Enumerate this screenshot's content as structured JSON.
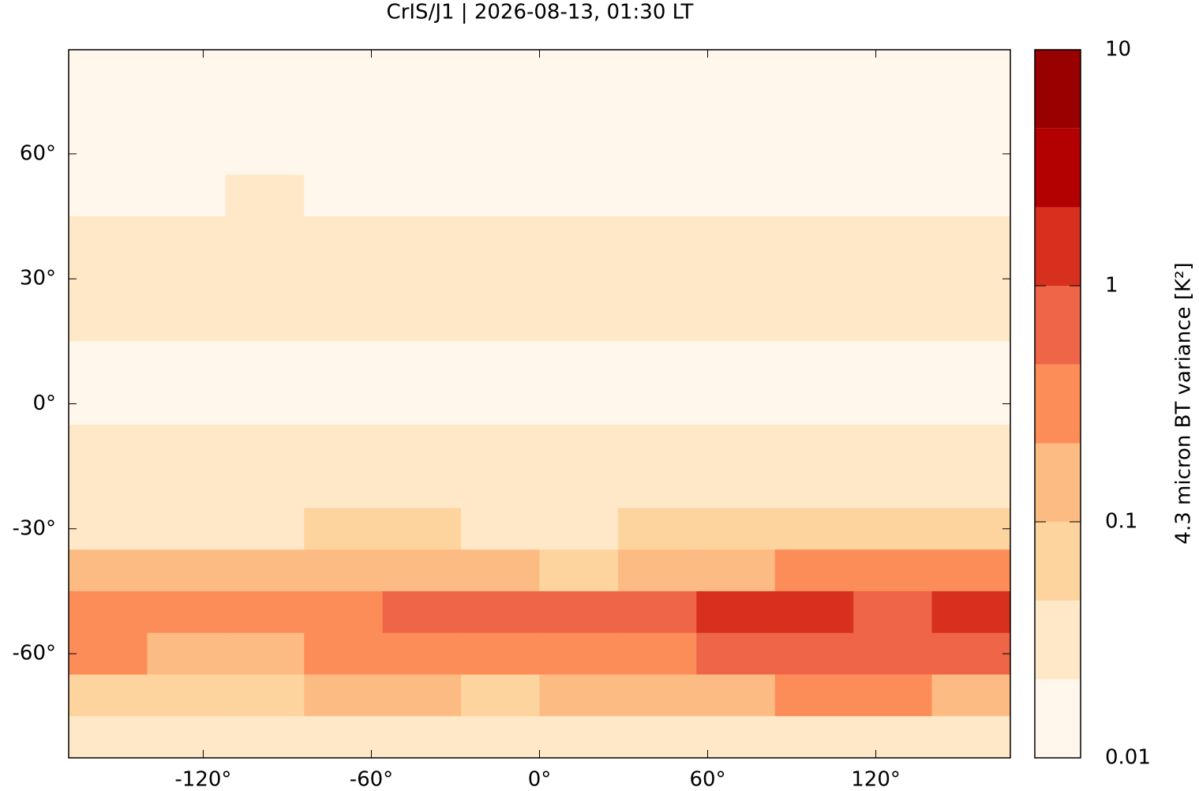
{
  "chart_data": {
    "type": "heatmap-map",
    "title": "CrIS/J1 | 2026-08-13, 01:30 LT",
    "colorbar_label": "4.3 micron BT variance [K²]",
    "xlim": [
      -168,
      168
    ],
    "ylim": [
      -85,
      85
    ],
    "xticks": [
      {
        "value": -120,
        "label": "-120°"
      },
      {
        "value": -60,
        "label": "-60°"
      },
      {
        "value": 0,
        "label": "0°"
      },
      {
        "value": 60,
        "label": "60°"
      },
      {
        "value": 120,
        "label": "120°"
      }
    ],
    "yticks": [
      {
        "value": -60,
        "label": "-60°"
      },
      {
        "value": -30,
        "label": "-30°"
      },
      {
        "value": 0,
        "label": "0°"
      },
      {
        "value": 30,
        "label": "30°"
      },
      {
        "value": 60,
        "label": "60°"
      }
    ],
    "lons": [
      -154,
      -126,
      -98,
      -70,
      -42,
      -14,
      14,
      42,
      70,
      98,
      126,
      154
    ],
    "lats": [
      80,
      70,
      60,
      50,
      40,
      30,
      20,
      10,
      0,
      -10,
      -20,
      -30,
      -40,
      -50,
      -60,
      -70,
      -80
    ],
    "values": [
      [
        0.015,
        0.015,
        0.015,
        0.015,
        0.015,
        0.015,
        0.015,
        0.015,
        0.015,
        0.015,
        0.015,
        0.015
      ],
      [
        0.015,
        0.015,
        0.015,
        0.015,
        0.015,
        0.015,
        0.015,
        0.015,
        0.015,
        0.015,
        0.015,
        0.015
      ],
      [
        0.015,
        0.015,
        0.015,
        0.015,
        0.015,
        0.015,
        0.015,
        0.015,
        0.015,
        0.015,
        0.015,
        0.015
      ],
      [
        0.02,
        0.02,
        0.03,
        0.02,
        0.02,
        0.02,
        0.02,
        0.02,
        0.02,
        0.02,
        0.02,
        0.02
      ],
      [
        0.025,
        0.025,
        0.025,
        0.025,
        0.025,
        0.025,
        0.025,
        0.025,
        0.025,
        0.025,
        0.025,
        0.025
      ],
      [
        0.025,
        0.025,
        0.025,
        0.025,
        0.025,
        0.025,
        0.025,
        0.025,
        0.025,
        0.025,
        0.025,
        0.025
      ],
      [
        0.025,
        0.025,
        0.025,
        0.025,
        0.025,
        0.025,
        0.025,
        0.025,
        0.025,
        0.025,
        0.03,
        0.025
      ],
      [
        0.02,
        0.02,
        0.02,
        0.02,
        0.02,
        0.02,
        0.02,
        0.02,
        0.02,
        0.02,
        0.02,
        0.02
      ],
      [
        0.02,
        0.02,
        0.02,
        0.02,
        0.02,
        0.02,
        0.02,
        0.02,
        0.02,
        0.02,
        0.02,
        0.02
      ],
      [
        0.025,
        0.025,
        0.025,
        0.025,
        0.025,
        0.025,
        0.025,
        0.025,
        0.025,
        0.025,
        0.025,
        0.025
      ],
      [
        0.03,
        0.03,
        0.03,
        0.03,
        0.03,
        0.03,
        0.03,
        0.03,
        0.03,
        0.03,
        0.03,
        0.03
      ],
      [
        0.04,
        0.04,
        0.04,
        0.05,
        0.05,
        0.04,
        0.04,
        0.05,
        0.05,
        0.05,
        0.05,
        0.06
      ],
      [
        0.12,
        0.15,
        0.12,
        0.15,
        0.15,
        0.12,
        0.08,
        0.12,
        0.2,
        0.3,
        0.35,
        0.4
      ],
      [
        0.4,
        0.3,
        0.25,
        0.3,
        0.5,
        0.6,
        0.5,
        0.6,
        1.2,
        1,
        0.9,
        1.5
      ],
      [
        0.25,
        0.15,
        0.2,
        0.3,
        0.3,
        0.25,
        0.25,
        0.3,
        0.5,
        0.5,
        0.6,
        0.8
      ],
      [
        0.06,
        0.05,
        0.08,
        0.1,
        0.1,
        0.08,
        0.1,
        0.15,
        0.2,
        0.3,
        0.25,
        0.2
      ],
      [
        0.04,
        0.04,
        0.04,
        0.04,
        0.04,
        0.04,
        0.04,
        0.04,
        0.04,
        0.04,
        0.04,
        0.04
      ]
    ],
    "levels": [
      0.01,
      0.0215,
      0.0464,
      0.1,
      0.215,
      0.464,
      1,
      2.15,
      4.64,
      10
    ],
    "colors": [
      "#fff7ec",
      "#fee8c8",
      "#fdd49e",
      "#fdbb84",
      "#fc8d59",
      "#ef6548",
      "#d7301f",
      "#b30000",
      "#990000"
    ],
    "colorbar_scale": "log",
    "colorbar_ticks": [
      0.01,
      0.1,
      1,
      10
    ]
  }
}
